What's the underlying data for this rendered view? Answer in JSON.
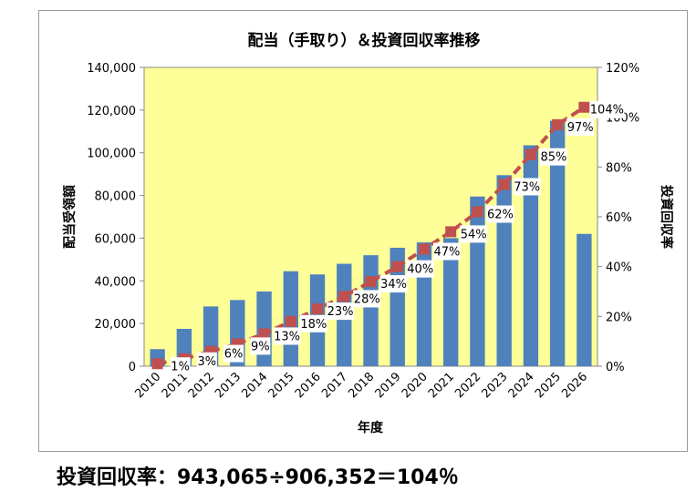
{
  "chart_data": {
    "type": "bar",
    "title": "配当（手取り）＆投資回収率推移",
    "xlabel": "年度",
    "ylabel_left": "配当受領額",
    "ylabel_right": "投資回収率",
    "categories": [
      "2010",
      "2011",
      "2012",
      "2013",
      "2014",
      "2015",
      "2016",
      "2017",
      "2018",
      "2019",
      "2020",
      "2021",
      "2022",
      "2023",
      "2024",
      "2025",
      "2026"
    ],
    "ylim_left": [
      0,
      140000
    ],
    "yticks_left": [
      "0",
      "20,000",
      "40,000",
      "60,000",
      "80,000",
      "100,000",
      "120,000",
      "140,000"
    ],
    "ylim_right": [
      0,
      120
    ],
    "yticks_right": [
      "0%",
      "20%",
      "40%",
      "60%",
      "80%",
      "100%",
      "120%"
    ],
    "series": [
      {
        "kind": "bar",
        "axis": "left",
        "color": "#4f81bd",
        "values": [
          8000,
          17500,
          28000,
          31000,
          35000,
          44500,
          43000,
          48000,
          52000,
          55500,
          58000,
          60000,
          79500,
          89500,
          103500,
          115000,
          62000
        ]
      },
      {
        "kind": "line",
        "axis": "right",
        "color": "#c0504d",
        "values": [
          1,
          3,
          6,
          9,
          13,
          18,
          23,
          28,
          34,
          40,
          47,
          54,
          62,
          73,
          85,
          97,
          104
        ],
        "labels": [
          "1%",
          "3%",
          "6%",
          "9%",
          "13%",
          "18%",
          "23%",
          "28%",
          "34%",
          "40%",
          "47%",
          "54%",
          "62%",
          "73%",
          "85%",
          "97%",
          "104%"
        ]
      }
    ],
    "plot_background": "#ffff99",
    "grid": false,
    "legend": "none"
  },
  "footer": {
    "text": "投資回収率：943,065÷906,352＝104％"
  }
}
